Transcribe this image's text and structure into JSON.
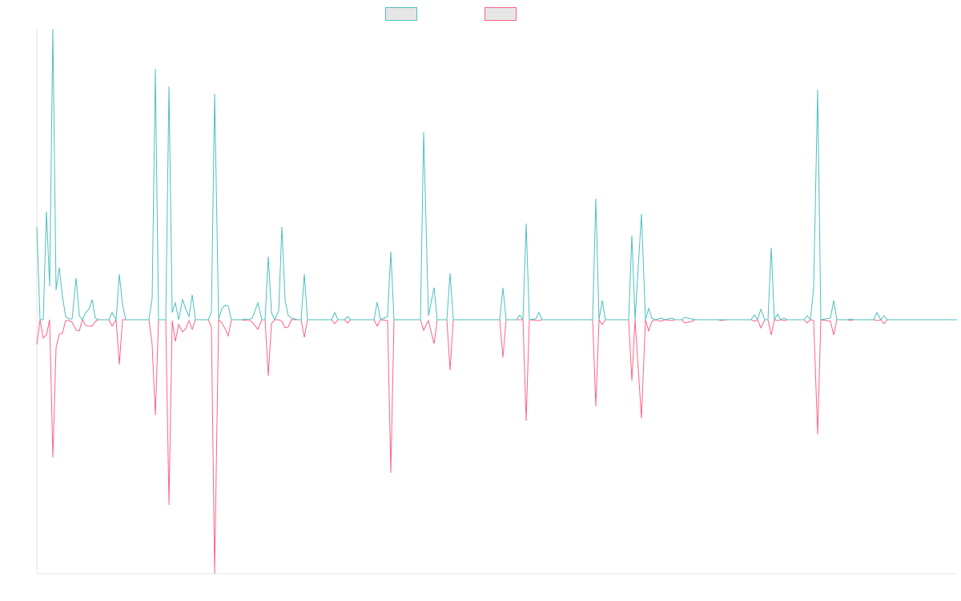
{
  "chart_data": {
    "type": "line",
    "x": [
      0,
      4,
      8,
      12,
      16,
      20,
      24,
      28,
      32,
      36,
      40,
      44,
      49,
      53,
      57,
      61,
      65,
      69,
      73,
      77,
      90,
      94,
      99,
      103,
      107,
      111,
      140,
      144,
      148,
      152,
      161,
      165,
      169,
      173,
      177,
      182,
      186,
      190,
      194,
      198,
      214,
      218,
      222,
      227,
      231,
      235,
      239,
      243,
      256,
      260,
      264,
      269,
      276,
      281,
      285,
      289,
      293,
      297,
      302,
      306,
      310,
      314,
      318,
      326,
      330,
      334,
      338,
      368,
      372,
      376,
      384,
      388,
      392,
      421,
      425,
      429,
      438,
      442,
      446,
      479,
      483,
      489,
      496,
      500,
      512,
      516,
      520,
      578,
      582,
      586,
      599,
      603,
      607,
      611,
      615,
      623,
      627,
      631,
      694,
      698,
      702,
      706,
      710,
      739,
      743,
      747,
      755,
      760,
      764,
      768,
      772,
      780,
      784,
      793,
      797,
      805,
      809,
      818,
      822,
      850,
      854,
      862,
      892,
      896,
      900,
      904,
      909,
      913,
      917,
      921,
      925,
      929,
      933,
      937,
      958,
      962,
      966,
      970,
      975,
      979,
      991,
      995,
      999,
      1012,
      1016,
      1020,
      1045,
      1049,
      1054,
      1058,
      1062,
      1149
    ],
    "series": [
      {
        "color": "#4bc0c0",
        "values": [
          116,
          0,
          0,
          135,
          42,
          363,
          37,
          65,
          29,
          4,
          1,
          1,
          52,
          5,
          0,
          9,
          13,
          25,
          2,
          0,
          0,
          9,
          0,
          57,
          19,
          0,
          0,
          27,
          313,
          0,
          0,
          291,
          9,
          21,
          0,
          25,
          13,
          4,
          31,
          0,
          0,
          9,
          282,
          0,
          14,
          18,
          17,
          0,
          0,
          1,
          0,
          2,
          21,
          0,
          0,
          79,
          9,
          0,
          11,
          116,
          24,
          5,
          2,
          0,
          0,
          57,
          0,
          0,
          9,
          0,
          0,
          4,
          0,
          0,
          22,
          0,
          4,
          85,
          0,
          0,
          234,
          5,
          40,
          0,
          0,
          58,
          0,
          0,
          40,
          0,
          0,
          6,
          0,
          120,
          0,
          1,
          9,
          0,
          0,
          151,
          0,
          24,
          0,
          0,
          105,
          0,
          132,
          0,
          14,
          2,
          0,
          2,
          0,
          2,
          0,
          0,
          3,
          1,
          0,
          0,
          0,
          0,
          0,
          6,
          0,
          13,
          0,
          0,
          90,
          0,
          7,
          0,
          2,
          0,
          0,
          5,
          0,
          40,
          287,
          0,
          2,
          24,
          0,
          0,
          1,
          0,
          0,
          9,
          0,
          5,
          0,
          0
        ]
      },
      {
        "color": "#ff6384",
        "values": [
          -31,
          0,
          -23,
          -19,
          0,
          -172,
          -35,
          -18,
          -17,
          -1,
          -1,
          -3,
          -13,
          -14,
          0,
          -7,
          -8,
          -8,
          -2,
          0,
          0,
          -8,
          0,
          -56,
          0,
          0,
          0,
          -31,
          -119,
          0,
          0,
          -231,
          -1,
          -27,
          -6,
          -15,
          -11,
          -1,
          -12,
          0,
          0,
          -9,
          -317,
          0,
          -4,
          -11,
          -20,
          0,
          0,
          -1,
          0,
          -3,
          -12,
          0,
          0,
          -70,
          -5,
          0,
          0,
          -2,
          -10,
          -9,
          0,
          0,
          0,
          -22,
          0,
          0,
          -5,
          0,
          0,
          -4,
          0,
          0,
          -8,
          0,
          -1,
          -191,
          0,
          0,
          -13,
          -1,
          -30,
          0,
          0,
          -63,
          0,
          0,
          -47,
          0,
          0,
          0,
          0,
          -126,
          0,
          -1,
          -1,
          0,
          0,
          -108,
          0,
          -6,
          0,
          0,
          -76,
          0,
          -123,
          0,
          -14,
          -2,
          0,
          -2,
          0,
          -1,
          0,
          0,
          -4,
          -2,
          0,
          0,
          -1,
          0,
          0,
          -2,
          0,
          -10,
          0,
          0,
          -19,
          0,
          -1,
          0,
          -1,
          0,
          0,
          -4,
          0,
          -1,
          -143,
          0,
          -2,
          -19,
          0,
          0,
          -1,
          0,
          0,
          -1,
          0,
          -5,
          0,
          0
        ]
      }
    ],
    "xlim": [
      0,
      1149
    ],
    "ylim": [
      -317,
      363
    ]
  }
}
